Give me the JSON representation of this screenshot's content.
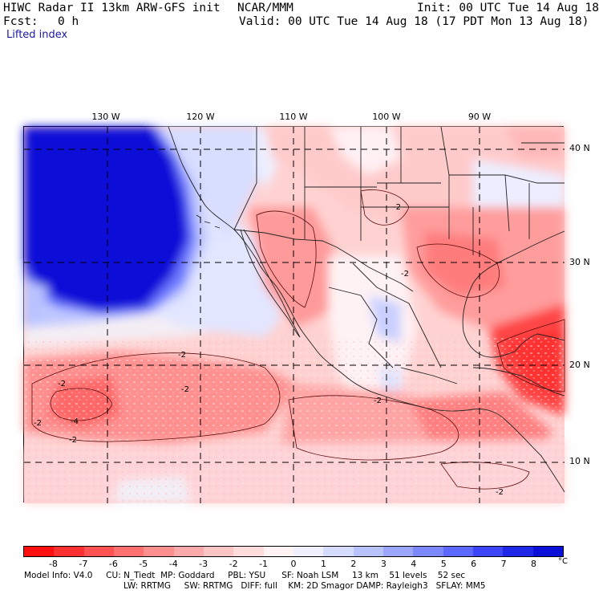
{
  "header": {
    "title": "HIWC Radar II 13km ARW-GFS init",
    "org": "NCAR/MMM",
    "init": "Init: 00 UTC Tue 14 Aug 18",
    "fcst_label": "Fcst:",
    "fcst_value": "0 h",
    "valid": "Valid: 00 UTC Tue 14 Aug 18 (17 PDT Mon 13 Aug 18)",
    "field": "Lifted index"
  },
  "lon_labels": [
    "130 W",
    "120 W",
    "110 W",
    "100 W",
    "90 W"
  ],
  "lat_labels": [
    "40 N",
    "30 N",
    "20 N",
    "10 N"
  ],
  "contour_labels": [
    "-2",
    "-2",
    "-2",
    "-2",
    "-4",
    "-2",
    "-2",
    "-2",
    "-2",
    "-2"
  ],
  "colorbar": {
    "ticks": [
      "-8",
      "-7",
      "-6",
      "-5",
      "-4",
      "-3",
      "-2",
      "-1",
      "0",
      "1",
      "2",
      "3",
      "4",
      "5",
      "6",
      "7",
      "8"
    ],
    "unit": "°C",
    "colors": [
      "#ff1010",
      "#ff3030",
      "#ff5252",
      "#ff7070",
      "#ff8e8e",
      "#ffaaaa",
      "#ffc4c4",
      "#ffdcdc",
      "#fff2f2",
      "#eef0ff",
      "#d6dcff",
      "#b8c2ff",
      "#9aa6ff",
      "#7c88ff",
      "#5c68ff",
      "#3c46f6",
      "#1e26e8",
      "#0a10d8"
    ]
  },
  "footer": {
    "line1": "Model Info: V4.0     CU: N_Tiedt  MP: Goddard     PBL: YSU      SF: Noah LSM     13 km    51 levels    52 sec",
    "line2": "LW: RRTMG     SW: RRTMG   DIFF: full    KM: 2D Smagor DAMP: Rayleigh3   SFLAY: MM5"
  }
}
